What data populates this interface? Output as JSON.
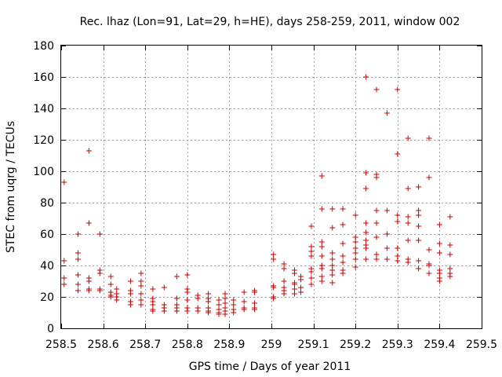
{
  "chart_data": {
    "type": "scatter",
    "title": "Rec. lhaz (Lon=91, Lat=29, h=HE), days 258-259, 2011, window 002",
    "xlabel": "GPS time / Days of year 2011",
    "ylabel": "STEC from uqrg / TECUs",
    "xlim": [
      258.5,
      259.5
    ],
    "ylim": [
      0,
      180
    ],
    "xticks": [
      258.5,
      258.6,
      258.7,
      258.8,
      258.9,
      259.0,
      259.1,
      259.2,
      259.3,
      259.4,
      259.5
    ],
    "xtick_labels": [
      "258.5",
      "258.6",
      "258.7",
      "258.8",
      "258.9",
      "259",
      "259.1",
      "259.2",
      "259.3",
      "259.4",
      "259.5"
    ],
    "yticks": [
      0,
      20,
      40,
      60,
      80,
      100,
      120,
      140,
      160,
      180
    ],
    "ytick_labels": [
      "0",
      "20",
      "40",
      "60",
      "80",
      "100",
      "120",
      "140",
      "160",
      "180"
    ],
    "grid": true,
    "marker": "+",
    "color": "#cc0000",
    "points": [
      [
        258.507,
        93
      ],
      [
        258.507,
        43
      ],
      [
        258.507,
        32
      ],
      [
        258.507,
        28
      ],
      [
        258.54,
        60
      ],
      [
        258.54,
        48
      ],
      [
        258.54,
        44
      ],
      [
        258.54,
        34
      ],
      [
        258.54,
        28
      ],
      [
        258.54,
        24
      ],
      [
        258.566,
        113
      ],
      [
        258.566,
        67
      ],
      [
        258.566,
        32
      ],
      [
        258.566,
        30
      ],
      [
        258.566,
        25
      ],
      [
        258.566,
        24
      ],
      [
        258.592,
        60
      ],
      [
        258.592,
        37
      ],
      [
        258.592,
        35
      ],
      [
        258.592,
        25
      ],
      [
        258.592,
        24
      ],
      [
        258.618,
        33
      ],
      [
        258.618,
        28
      ],
      [
        258.618,
        23
      ],
      [
        258.618,
        21
      ],
      [
        258.618,
        20
      ],
      [
        258.632,
        25
      ],
      [
        258.632,
        22
      ],
      [
        258.632,
        20
      ],
      [
        258.632,
        18
      ],
      [
        258.665,
        30
      ],
      [
        258.665,
        24
      ],
      [
        258.665,
        22
      ],
      [
        258.665,
        17
      ],
      [
        258.665,
        15
      ],
      [
        258.69,
        35
      ],
      [
        258.69,
        30
      ],
      [
        258.69,
        27
      ],
      [
        258.69,
        22
      ],
      [
        258.69,
        18
      ],
      [
        258.69,
        15
      ],
      [
        258.718,
        25
      ],
      [
        258.718,
        19
      ],
      [
        258.718,
        17
      ],
      [
        258.718,
        15
      ],
      [
        258.718,
        12
      ],
      [
        258.718,
        11
      ],
      [
        258.745,
        26
      ],
      [
        258.745,
        15
      ],
      [
        258.745,
        13
      ],
      [
        258.745,
        11
      ],
      [
        258.775,
        33
      ],
      [
        258.775,
        19
      ],
      [
        258.775,
        15
      ],
      [
        258.775,
        13
      ],
      [
        258.775,
        11
      ],
      [
        258.8,
        34
      ],
      [
        258.8,
        25
      ],
      [
        258.8,
        23
      ],
      [
        258.8,
        18
      ],
      [
        258.8,
        13
      ],
      [
        258.8,
        11
      ],
      [
        258.825,
        21
      ],
      [
        258.825,
        19
      ],
      [
        258.825,
        13
      ],
      [
        258.825,
        11
      ],
      [
        258.85,
        22
      ],
      [
        258.85,
        19
      ],
      [
        258.85,
        17
      ],
      [
        258.85,
        13
      ],
      [
        258.85,
        11
      ],
      [
        258.85,
        10
      ],
      [
        258.875,
        18
      ],
      [
        258.875,
        15
      ],
      [
        258.875,
        12
      ],
      [
        258.875,
        10
      ],
      [
        258.875,
        9
      ],
      [
        258.89,
        22
      ],
      [
        258.89,
        19
      ],
      [
        258.89,
        16
      ],
      [
        258.89,
        13
      ],
      [
        258.89,
        11
      ],
      [
        258.89,
        9
      ],
      [
        258.91,
        18
      ],
      [
        258.91,
        15
      ],
      [
        258.91,
        12
      ],
      [
        258.91,
        10
      ],
      [
        258.935,
        23
      ],
      [
        258.935,
        17
      ],
      [
        258.935,
        13
      ],
      [
        258.935,
        12
      ],
      [
        258.96,
        24
      ],
      [
        258.96,
        23
      ],
      [
        258.96,
        16
      ],
      [
        258.96,
        13
      ],
      [
        258.96,
        12
      ],
      [
        259.005,
        47
      ],
      [
        259.005,
        44
      ],
      [
        259.005,
        27
      ],
      [
        259.005,
        26
      ],
      [
        259.005,
        20
      ],
      [
        259.005,
        19
      ],
      [
        259.03,
        41
      ],
      [
        259.03,
        38
      ],
      [
        259.03,
        30
      ],
      [
        259.03,
        26
      ],
      [
        259.03,
        24
      ],
      [
        259.03,
        22
      ],
      [
        259.055,
        37
      ],
      [
        259.055,
        35
      ],
      [
        259.055,
        29
      ],
      [
        259.055,
        28
      ],
      [
        259.055,
        25
      ],
      [
        259.055,
        22
      ],
      [
        259.07,
        33
      ],
      [
        259.07,
        31
      ],
      [
        259.07,
        26
      ],
      [
        259.07,
        23
      ],
      [
        259.095,
        65
      ],
      [
        259.095,
        52
      ],
      [
        259.095,
        49
      ],
      [
        259.095,
        46
      ],
      [
        259.095,
        38
      ],
      [
        259.095,
        36
      ],
      [
        259.095,
        32
      ],
      [
        259.095,
        28
      ],
      [
        259.12,
        97
      ],
      [
        259.12,
        76
      ],
      [
        259.12,
        55
      ],
      [
        259.12,
        52
      ],
      [
        259.12,
        46
      ],
      [
        259.12,
        40
      ],
      [
        259.12,
        38
      ],
      [
        259.12,
        33
      ],
      [
        259.12,
        30
      ],
      [
        259.145,
        76
      ],
      [
        259.145,
        64
      ],
      [
        259.145,
        48
      ],
      [
        259.145,
        44
      ],
      [
        259.145,
        40
      ],
      [
        259.145,
        37
      ],
      [
        259.145,
        34
      ],
      [
        259.145,
        29
      ],
      [
        259.17,
        76
      ],
      [
        259.17,
        66
      ],
      [
        259.17,
        54
      ],
      [
        259.17,
        46
      ],
      [
        259.17,
        42
      ],
      [
        259.17,
        37
      ],
      [
        259.17,
        35
      ],
      [
        259.2,
        72
      ],
      [
        259.2,
        58
      ],
      [
        259.2,
        55
      ],
      [
        259.2,
        51
      ],
      [
        259.2,
        48
      ],
      [
        259.2,
        44
      ],
      [
        259.2,
        39
      ],
      [
        259.225,
        160
      ],
      [
        259.225,
        99
      ],
      [
        259.225,
        89
      ],
      [
        259.225,
        67
      ],
      [
        259.225,
        61
      ],
      [
        259.225,
        56
      ],
      [
        259.225,
        53
      ],
      [
        259.225,
        51
      ],
      [
        259.225,
        44
      ],
      [
        259.25,
        152
      ],
      [
        259.25,
        98
      ],
      [
        259.25,
        96
      ],
      [
        259.25,
        75
      ],
      [
        259.25,
        67
      ],
      [
        259.25,
        58
      ],
      [
        259.25,
        47
      ],
      [
        259.25,
        44
      ],
      [
        259.275,
        137
      ],
      [
        259.275,
        75
      ],
      [
        259.275,
        60
      ],
      [
        259.275,
        51
      ],
      [
        259.275,
        44
      ],
      [
        259.3,
        152
      ],
      [
        259.3,
        111
      ],
      [
        259.3,
        72
      ],
      [
        259.3,
        68
      ],
      [
        259.3,
        51
      ],
      [
        259.3,
        46
      ],
      [
        259.3,
        43
      ],
      [
        259.325,
        121
      ],
      [
        259.325,
        89
      ],
      [
        259.325,
        71
      ],
      [
        259.325,
        67
      ],
      [
        259.325,
        56
      ],
      [
        259.325,
        44
      ],
      [
        259.325,
        42
      ],
      [
        259.35,
        90
      ],
      [
        259.35,
        75
      ],
      [
        259.35,
        72
      ],
      [
        259.35,
        65
      ],
      [
        259.35,
        56
      ],
      [
        259.35,
        43
      ],
      [
        259.35,
        38
      ],
      [
        259.375,
        121
      ],
      [
        259.375,
        96
      ],
      [
        259.375,
        50
      ],
      [
        259.375,
        41
      ],
      [
        259.375,
        40
      ],
      [
        259.375,
        35
      ],
      [
        259.4,
        66
      ],
      [
        259.4,
        54
      ],
      [
        259.4,
        48
      ],
      [
        259.4,
        37
      ],
      [
        259.4,
        35
      ],
      [
        259.4,
        32
      ],
      [
        259.4,
        30
      ],
      [
        259.425,
        71
      ],
      [
        259.425,
        53
      ],
      [
        259.425,
        47
      ],
      [
        259.425,
        38
      ],
      [
        259.425,
        35
      ],
      [
        259.425,
        33
      ]
    ]
  }
}
